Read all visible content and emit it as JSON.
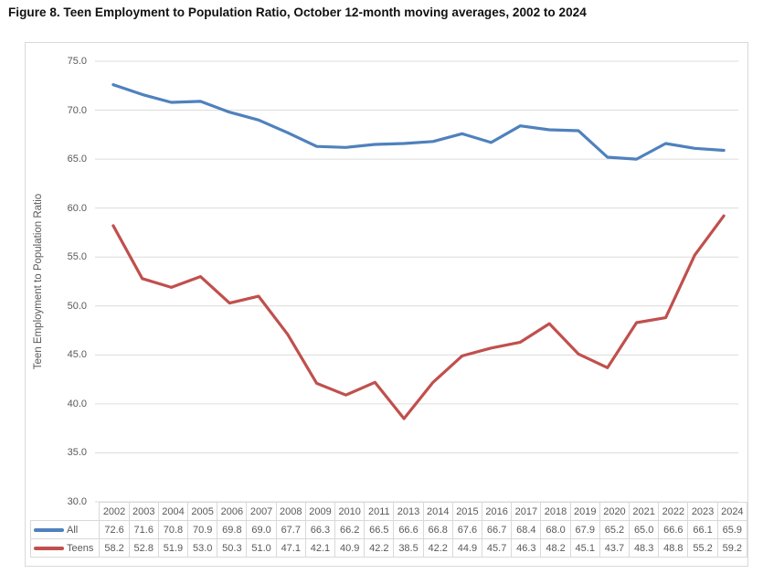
{
  "figure_title": "Figure 8. Teen Employment to Population Ratio, October 12-month moving averages, 2002 to 2024",
  "chart_data": {
    "type": "line",
    "title": "Figure 8. Teen Employment to Population Ratio, October 12-month moving averages, 2002 to 2024",
    "ylabel": "Teen Employment to Population Ratio",
    "xlabel": "",
    "ylim": [
      30.0,
      75.0
    ],
    "ytick_step": 5.0,
    "ytick_decimals": 1,
    "grid": "horizontal",
    "legend_position": "data-table-left",
    "categories": [
      "2002",
      "2003",
      "2004",
      "2005",
      "2006",
      "2007",
      "2008",
      "2009",
      "2010",
      "2011",
      "2013",
      "2014",
      "2015",
      "2016",
      "2017",
      "2018",
      "2019",
      "2020",
      "2021",
      "2022",
      "2023",
      "2024"
    ],
    "series": [
      {
        "name": "All",
        "color": "#4F81BD",
        "values": [
          72.6,
          71.6,
          70.8,
          70.9,
          69.8,
          69.0,
          67.7,
          66.3,
          66.2,
          66.5,
          66.6,
          66.8,
          67.6,
          66.7,
          68.4,
          68.0,
          67.9,
          65.2,
          65.0,
          66.6,
          66.1,
          65.9
        ]
      },
      {
        "name": "Teens",
        "color": "#C0504D",
        "values": [
          58.2,
          52.8,
          51.9,
          53.0,
          50.3,
          51.0,
          47.1,
          42.1,
          40.9,
          42.2,
          38.5,
          42.2,
          44.9,
          45.7,
          46.3,
          48.2,
          45.1,
          43.7,
          48.3,
          48.8,
          55.2,
          59.2
        ]
      }
    ],
    "colors": {
      "gridline": "#dcdcdc",
      "axis_text": "#595959",
      "table_border": "#d9d9d9",
      "table_text": "#595959"
    }
  }
}
